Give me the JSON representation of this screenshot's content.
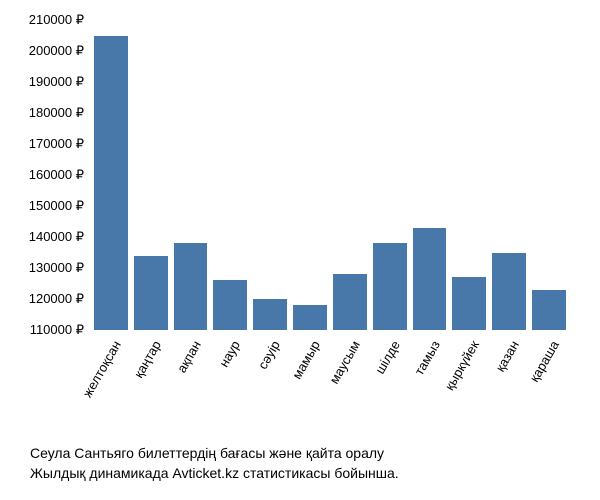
{
  "chart": {
    "type": "bar",
    "categories": [
      "желтоқсан",
      "қаңтар",
      "ақпан",
      "наур",
      "сәуір",
      "мамыр",
      "маусым",
      "шілде",
      "тамыз",
      "қыркүйек",
      "қазан",
      "қараша"
    ],
    "values": [
      205000,
      134000,
      138000,
      126000,
      120000,
      118000,
      128000,
      138000,
      143000,
      127000,
      135000,
      123000
    ],
    "bar_color": "#4878a9",
    "ylim_min": 110000,
    "ylim_max": 210000,
    "ytick_step": 10000,
    "currency_suffix": " ₽",
    "background_color": "#ffffff",
    "label_fontsize": 13,
    "caption_fontsize": 14
  },
  "caption": {
    "line1": "Сеула Сантьяго билеттердің бағасы және қайта оралу",
    "line2": "Жылдық динамикада Avticket.kz статистикасы бойынша."
  }
}
